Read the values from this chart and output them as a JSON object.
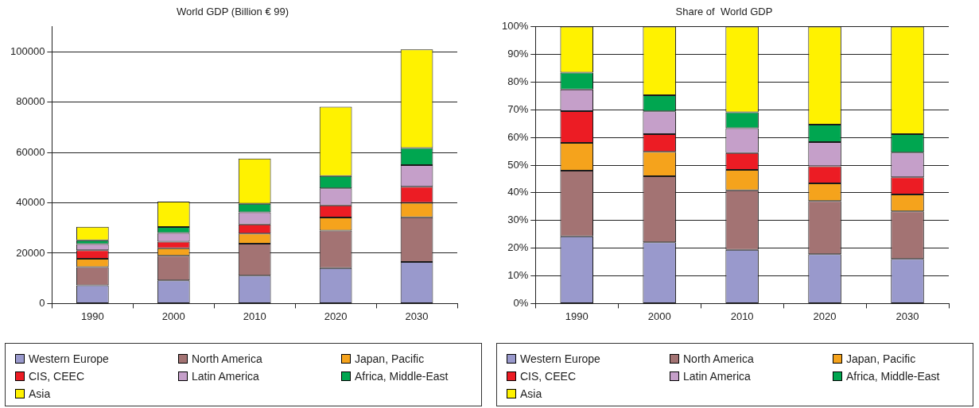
{
  "chart_data": [
    {
      "type": "bar",
      "title": "World GDP (Billion € 99)",
      "categories": [
        "1990",
        "2000",
        "2010",
        "2020",
        "2030"
      ],
      "stacked": true,
      "ylim": [
        0,
        110000
      ],
      "yticks": [
        0,
        20000,
        40000,
        60000,
        80000,
        100000
      ],
      "grid": "y",
      "legend": "bottom",
      "series": [
        {
          "name": "Western Europe",
          "color": "#9999cc",
          "values": [
            7200,
            9200,
            11100,
            14100,
            16500
          ]
        },
        {
          "name": "North America",
          "color": "#a37373",
          "values": [
            7300,
            9800,
            12700,
            14900,
            17800
          ]
        },
        {
          "name": "Japan, Pacific",
          "color": "#f5a31c",
          "values": [
            3300,
            3000,
            4000,
            5200,
            5700
          ]
        },
        {
          "name": "CIS, CEEC",
          "color": "#ec1c24",
          "values": [
            3400,
            2600,
            3600,
            4800,
            6400
          ]
        },
        {
          "name": "Latin America",
          "color": "#c59fc9",
          "values": [
            2400,
            3400,
            4800,
            6800,
            8600
          ]
        },
        {
          "name": "Africa, Middle-East",
          "color": "#00a650",
          "values": [
            1500,
            2400,
            3400,
            4900,
            6800
          ]
        },
        {
          "name": "Asia",
          "color": "#fff200",
          "values": [
            5400,
            10100,
            18000,
            27500,
            39200
          ]
        }
      ]
    },
    {
      "type": "bar",
      "title": "Share of  World GDP",
      "categories": [
        "1990",
        "2000",
        "2010",
        "2020",
        "2030"
      ],
      "stacked": true,
      "ylim": [
        0,
        100
      ],
      "yticks": [
        {
          "value": 0,
          "label": "0%"
        },
        {
          "value": 10,
          "label": "10%"
        },
        {
          "value": 20,
          "label": "20%"
        },
        {
          "value": 30,
          "label": "30%"
        },
        {
          "value": 40,
          "label": "40%"
        },
        {
          "value": 50,
          "label": "50%"
        },
        {
          "value": 60,
          "label": "60%"
        },
        {
          "value": 70,
          "label": "70%"
        },
        {
          "value": 80,
          "label": "80%"
        },
        {
          "value": 90,
          "label": "90%"
        },
        {
          "value": 100,
          "label": "100%"
        }
      ],
      "grid": "y",
      "legend": "bottom",
      "series": [
        {
          "name": "Western Europe",
          "color": "#9999cc",
          "values": [
            24.3,
            22.1,
            19.4,
            17.8,
            16.1
          ]
        },
        {
          "name": "North America",
          "color": "#a37373",
          "values": [
            23.7,
            23.9,
            21.5,
            19.2,
            17.2
          ]
        },
        {
          "name": "Japan, Pacific",
          "color": "#f5a31c",
          "values": [
            10,
            8.8,
            7.4,
            6.4,
            6.1
          ]
        },
        {
          "name": "CIS, CEEC",
          "color": "#ec1c24",
          "values": [
            11.5,
            6.4,
            6.1,
            6.2,
            6.2
          ]
        },
        {
          "name": "Latin America",
          "color": "#c59fc9",
          "values": [
            7.8,
            8.2,
            8.9,
            8.7,
            8.9
          ]
        },
        {
          "name": "Africa, Middle-East",
          "color": "#00a650",
          "values": [
            6.1,
            5.8,
            5.8,
            6.3,
            6.7
          ]
        },
        {
          "name": "Asia",
          "color": "#fff200",
          "values": [
            16.6,
            24.8,
            30.9,
            35.4,
            38.8
          ]
        }
      ]
    }
  ]
}
